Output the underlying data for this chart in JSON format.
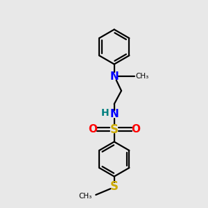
{
  "background_color": "#e8e8e8",
  "bond_color": "#000000",
  "N_color": "#0000ff",
  "NH_color": "#008080",
  "S_color": "#ccaa00",
  "O_color": "#ff0000",
  "S_thio_color": "#ccaa00",
  "figsize": [
    3.0,
    3.0
  ],
  "dpi": 100,
  "xlim": [
    0,
    10
  ],
  "ylim": [
    0,
    10
  ]
}
